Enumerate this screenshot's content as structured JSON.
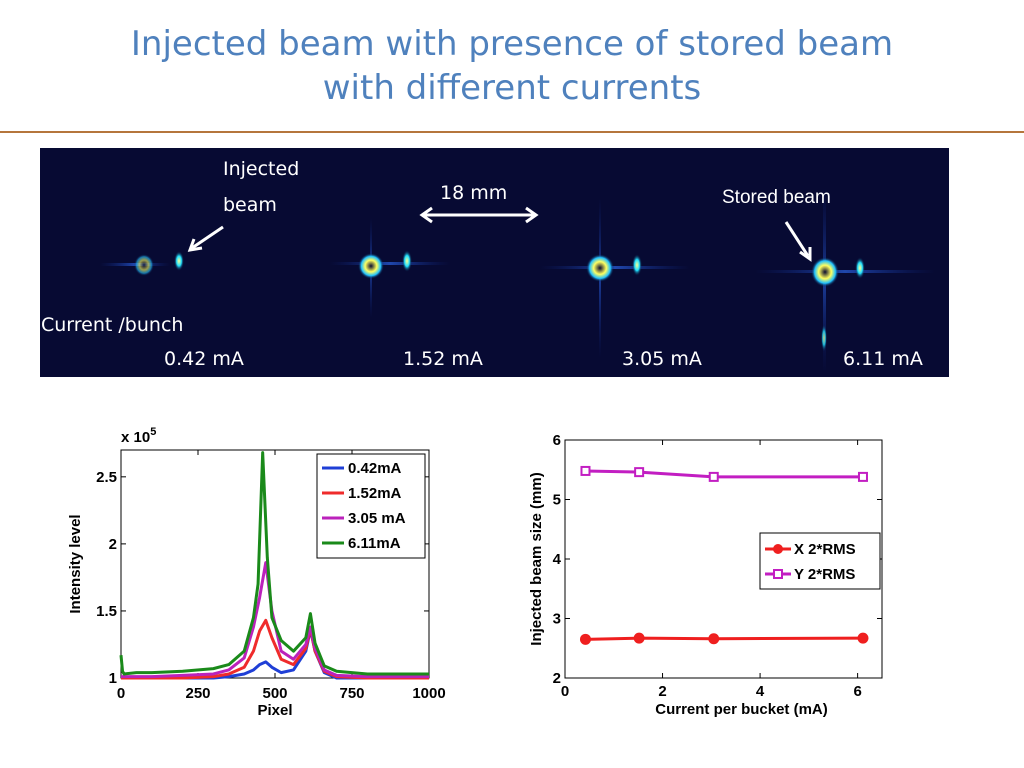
{
  "slide": {
    "title_line1": "Injected beam with presence of stored beam",
    "title_line2": "with different currents"
  },
  "beam_image": {
    "injected_label_line1": "Injected",
    "injected_label_line2": "beam",
    "distance_label": "18 mm",
    "stored_label": "Stored beam",
    "current_label": "Current /bunch",
    "currents": [
      "0.42 mA",
      "1.52 mA",
      "3.05 mA",
      "6.11 mA"
    ]
  },
  "chart_data": [
    {
      "type": "line",
      "xlabel": "Pixel",
      "ylabel": "Intensity level",
      "y_multiplier": "x 10^5",
      "xlim": [
        0,
        1000
      ],
      "ylim": [
        1,
        2.7
      ],
      "xticks": [
        "0",
        "250",
        "500",
        "750",
        "1000"
      ],
      "yticks": [
        "1",
        "1.5",
        "2",
        "2.5"
      ],
      "legend_position": "top-right",
      "series": [
        {
          "name": "0.42mA",
          "color": "#1f3fd6",
          "x": [
            0,
            50,
            100,
            200,
            300,
            350,
            400,
            430,
            450,
            470,
            490,
            520,
            560,
            600,
            615,
            630,
            660,
            700,
            800,
            900,
            1000
          ],
          "y": [
            1.0,
            1.0,
            1.0,
            1.0,
            1.0,
            1.01,
            1.03,
            1.06,
            1.1,
            1.12,
            1.08,
            1.04,
            1.06,
            1.2,
            1.36,
            1.2,
            1.04,
            1.0,
            1.0,
            1.0,
            1.0
          ]
        },
        {
          "name": "1.52mA",
          "color": "#ef2b2b",
          "x": [
            0,
            50,
            100,
            200,
            300,
            350,
            400,
            430,
            450,
            470,
            490,
            520,
            560,
            600,
            615,
            630,
            660,
            700,
            800,
            900,
            1000
          ],
          "y": [
            1.0,
            1.0,
            1.0,
            1.0,
            1.01,
            1.03,
            1.08,
            1.2,
            1.35,
            1.43,
            1.3,
            1.14,
            1.1,
            1.22,
            1.37,
            1.2,
            1.05,
            1.01,
            1.0,
            1.0,
            1.0
          ]
        },
        {
          "name": "3.05 mA",
          "color": "#bb22bb",
          "x": [
            0,
            50,
            100,
            200,
            300,
            350,
            400,
            430,
            450,
            470,
            490,
            520,
            560,
            600,
            615,
            630,
            660,
            700,
            800,
            900,
            1000
          ],
          "y": [
            1.01,
            1.01,
            1.01,
            1.02,
            1.03,
            1.06,
            1.15,
            1.38,
            1.6,
            1.86,
            1.5,
            1.2,
            1.14,
            1.25,
            1.38,
            1.22,
            1.06,
            1.02,
            1.01,
            1.01,
            1.01
          ]
        },
        {
          "name": "6.11mA",
          "color": "#1a8a1a",
          "x": [
            0,
            5,
            10,
            50,
            100,
            200,
            300,
            350,
            400,
            430,
            445,
            460,
            475,
            490,
            520,
            560,
            600,
            615,
            630,
            660,
            700,
            800,
            900,
            1000
          ],
          "y": [
            1.17,
            1.05,
            1.03,
            1.04,
            1.04,
            1.05,
            1.07,
            1.1,
            1.2,
            1.45,
            1.7,
            2.68,
            1.9,
            1.45,
            1.28,
            1.2,
            1.3,
            1.48,
            1.26,
            1.09,
            1.05,
            1.03,
            1.03,
            1.03
          ]
        }
      ]
    },
    {
      "type": "line",
      "xlabel": "Current per bucket (mA)",
      "ylabel": "Injected beam size (mm)",
      "xlim": [
        0,
        6.5
      ],
      "ylim": [
        2,
        6
      ],
      "xticks": [
        "0",
        "2",
        "4",
        "6"
      ],
      "yticks": [
        "2",
        "3",
        "4",
        "5",
        "6"
      ],
      "legend_position": "right",
      "series": [
        {
          "name": "X 2*RMS",
          "color": "#ef1f1f",
          "marker": "circle",
          "x": [
            0.42,
            1.52,
            3.05,
            6.11
          ],
          "y": [
            2.65,
            2.67,
            2.66,
            2.67
          ]
        },
        {
          "name": "Y 2*RMS",
          "color": "#c21ec2",
          "marker": "square",
          "x": [
            0.42,
            1.52,
            3.05,
            6.11
          ],
          "y": [
            5.48,
            5.46,
            5.38,
            5.38
          ]
        }
      ]
    }
  ]
}
